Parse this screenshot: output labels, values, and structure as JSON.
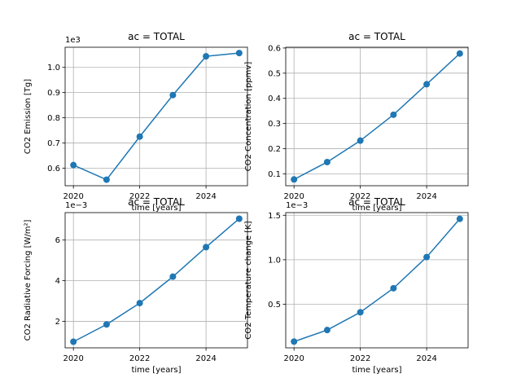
{
  "chart_data": [
    {
      "type": "line",
      "title": "ac = TOTAL",
      "xlabel": "time [years]",
      "ylabel": "CO2 Emission [Tg]",
      "y_offset_label": "1e3",
      "x": [
        2020,
        2021,
        2022,
        2023,
        2024,
        2025
      ],
      "y": [
        0.612,
        0.554,
        0.725,
        0.89,
        1.044,
        1.057
      ],
      "xlim": [
        2019.75,
        2025.25
      ],
      "ylim": [
        0.53,
        1.08
      ],
      "xticks": [
        2020,
        2022,
        2024
      ],
      "xtick_labels": [
        "2020",
        "2022",
        "2024"
      ],
      "yticks": [
        0.6,
        0.7,
        0.8,
        0.9,
        1.0
      ],
      "ytick_labels": [
        "0.6",
        "0.7",
        "0.8",
        "0.9",
        "1.0"
      ],
      "grid": true,
      "color": "#1f77b4"
    },
    {
      "type": "line",
      "title": "ac = TOTAL",
      "xlabel": "time [years]",
      "ylabel": "CO2 Concentration [ppmv]",
      "y_offset_label": "",
      "x": [
        2020,
        2021,
        2022,
        2023,
        2024,
        2025
      ],
      "y": [
        0.078,
        0.147,
        0.232,
        0.335,
        0.456,
        0.578
      ],
      "xlim": [
        2019.75,
        2025.25
      ],
      "ylim": [
        0.053,
        0.603
      ],
      "xticks": [
        2020,
        2022,
        2024
      ],
      "xtick_labels": [
        "2020",
        "2022",
        "2024"
      ],
      "yticks": [
        0.1,
        0.2,
        0.3,
        0.4,
        0.5,
        0.6
      ],
      "ytick_labels": [
        "0.1",
        "0.2",
        "0.3",
        "0.4",
        "0.5",
        "0.6"
      ],
      "grid": true,
      "color": "#1f77b4"
    },
    {
      "type": "line",
      "title": "ac = TOTAL",
      "xlabel": "time [years]",
      "ylabel": "CO2 Radiative Forcing [W/m²]",
      "y_offset_label": "1e−3",
      "x": [
        2020,
        2021,
        2022,
        2023,
        2024,
        2025
      ],
      "y": [
        1.0,
        1.85,
        2.9,
        4.2,
        5.65,
        7.05
      ],
      "xlim": [
        2019.75,
        2025.25
      ],
      "ylim": [
        0.7,
        7.35
      ],
      "xticks": [
        2020,
        2022,
        2024
      ],
      "xtick_labels": [
        "2020",
        "2022",
        "2024"
      ],
      "yticks": [
        2,
        4,
        6
      ],
      "ytick_labels": [
        "2",
        "4",
        "6"
      ],
      "grid": true,
      "color": "#1f77b4"
    },
    {
      "type": "line",
      "title": "ac = TOTAL",
      "xlabel": "time [years]",
      "ylabel": "CO2 Temperature change [K]",
      "y_offset_label": "1e−3",
      "x": [
        2020,
        2021,
        2022,
        2023,
        2024,
        2025
      ],
      "y": [
        0.08,
        0.21,
        0.41,
        0.68,
        1.03,
        1.46
      ],
      "xlim": [
        2019.75,
        2025.25
      ],
      "ylim": [
        0.01,
        1.53
      ],
      "xticks": [
        2020,
        2022,
        2024
      ],
      "xtick_labels": [
        "2020",
        "2022",
        "2024"
      ],
      "yticks": [
        0.5,
        1.0,
        1.5
      ],
      "ytick_labels": [
        "0.5",
        "1.0",
        "1.5"
      ],
      "grid": true,
      "color": "#1f77b4"
    }
  ]
}
